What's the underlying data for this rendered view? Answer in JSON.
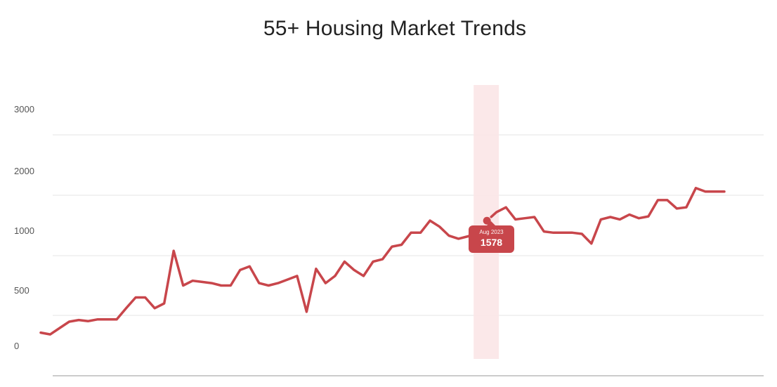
{
  "chart_data": {
    "type": "line",
    "title": "55+ Housing Market Trends",
    "xlabel": "",
    "ylabel": "",
    "y_tick_labels": [
      "3000",
      "2000",
      "1000",
      "500",
      "0"
    ],
    "grid": true,
    "series": [
      {
        "color": "#c8464b",
        "values": [
          200,
          170,
          280,
          390,
          420,
          400,
          430,
          430,
          430,
          560,
          650,
          650,
          560,
          600,
          1080,
          750,
          790,
          780,
          770,
          750,
          750,
          880,
          910,
          770,
          750,
          770,
          800,
          830,
          530,
          890,
          770,
          830,
          950,
          880,
          830,
          950,
          970,
          1150,
          1180,
          1380,
          1380,
          1580,
          1480,
          1330,
          1280,
          1320,
          1380,
          1578,
          1720,
          1800,
          1600,
          1620,
          1640,
          1400,
          1380,
          1380,
          1380,
          1360,
          1200,
          1600,
          1640,
          1600,
          1680,
          1620,
          1650,
          1920,
          1920,
          1780,
          1800,
          2120,
          2060,
          2060,
          2060
        ]
      }
    ],
    "highlight": {
      "index": 47,
      "date": "Aug 2023",
      "value": "1578"
    }
  }
}
